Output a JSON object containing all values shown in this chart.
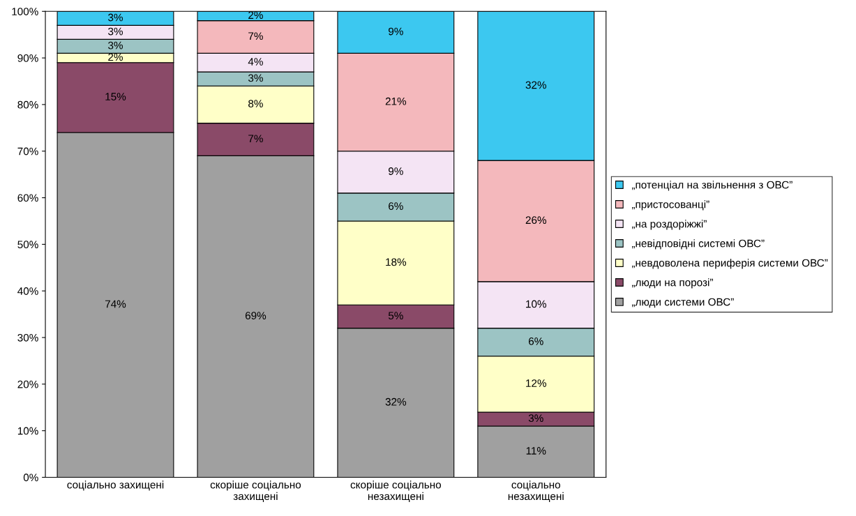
{
  "chart_data": {
    "type": "bar",
    "stacked": true,
    "categories": [
      "соціально захищені",
      "скоріше соціально захищені",
      "скоріше соціально незахищені",
      "соціально незахищені"
    ],
    "series": [
      {
        "name": "„люди системи ОВС”",
        "color": "#a0a0a0",
        "values": [
          74,
          69,
          32,
          11
        ],
        "value_labels": [
          "74%",
          "69%",
          "32%",
          "11%"
        ]
      },
      {
        "name": "„люди на порозі”",
        "color": "#8a4a68",
        "values": [
          15,
          7,
          5,
          3
        ],
        "value_labels": [
          "15%",
          "7%",
          "5%",
          "3%"
        ]
      },
      {
        "name": "„невдоволена периферія системи ОВС”",
        "color": "#ffffc8",
        "values": [
          2,
          8,
          18,
          12
        ],
        "value_labels": [
          "2%",
          "8%",
          "18%",
          "12%"
        ]
      },
      {
        "name": "„невідповідні системі ОВС”",
        "color": "#9cc4c4",
        "values": [
          3,
          3,
          6,
          6
        ],
        "value_labels": [
          "3%",
          "3%",
          "6%",
          "6%"
        ]
      },
      {
        "name": "„на роздоріжжі”",
        "color": "#f4e4f4",
        "values": [
          3,
          4,
          9,
          10
        ],
        "value_labels": [
          "3%",
          "4%",
          "9%",
          "10%"
        ]
      },
      {
        "name": "„пристосованці”",
        "color": "#f4b8bc",
        "values": [
          0,
          7,
          21,
          26
        ],
        "value_labels": [
          null,
          "7%",
          "21%",
          "26%"
        ]
      },
      {
        "name": "„потенціал на звільнення з ОВС”",
        "color": "#3cc8f0",
        "values": [
          3,
          2,
          9,
          32
        ],
        "value_labels": [
          "3%",
          "2%",
          "9%",
          "32%"
        ]
      }
    ],
    "ylim": [
      0,
      100
    ],
    "yticks": [
      {
        "value": 0,
        "label": "0%"
      },
      {
        "value": 10,
        "label": "10%"
      },
      {
        "value": 20,
        "label": "20%"
      },
      {
        "value": 30,
        "label": "30%"
      },
      {
        "value": 40,
        "label": "40%"
      },
      {
        "value": 50,
        "label": "50%"
      },
      {
        "value": 60,
        "label": "60%"
      },
      {
        "value": 70,
        "label": "70%"
      },
      {
        "value": 80,
        "label": "80%"
      },
      {
        "value": 90,
        "label": "90%"
      },
      {
        "value": 100,
        "label": "100%"
      }
    ],
    "legend": "right",
    "grid": false
  }
}
